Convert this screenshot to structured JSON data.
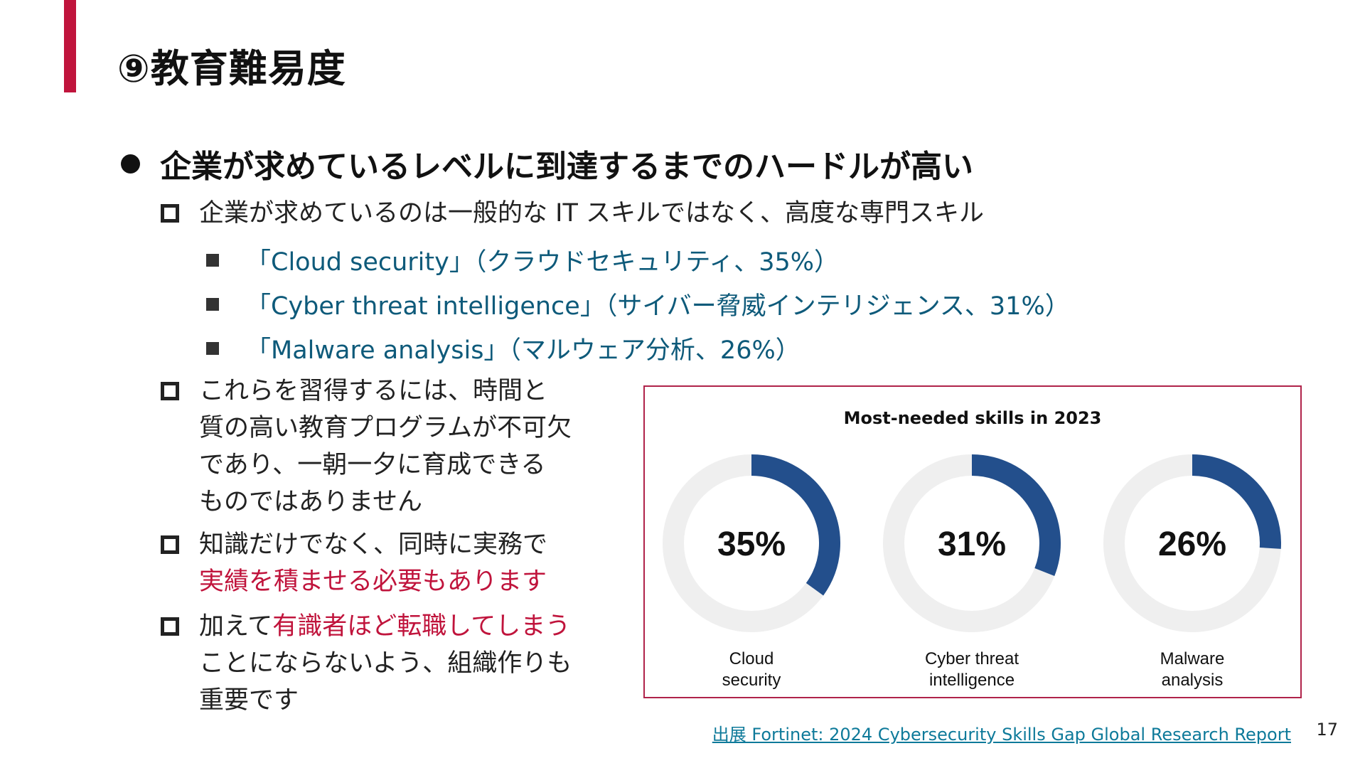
{
  "slide": {
    "title": "⑨教育難易度",
    "main_bullet": "企業が求めているレベルに到達するまでのハードルが高い",
    "point1": "企業が求めているのは一般的な IT スキルではなく、高度な専門スキル",
    "sub_items": [
      "「Cloud security」（クラウドセキュリティ、35%）",
      "「Cyber threat intelligence」（サイバー脅威インテリジェンス、31%）",
      "「Malware analysis」（マルウェア分析、26%）"
    ],
    "point2_lines": [
      "これらを習得するには、時間と",
      "質の高い教育プログラムが不可欠",
      "であり、一朝一夕に育成できる",
      "ものではありません"
    ],
    "point3_line1": "知識だけでなく、同時に実務で",
    "point3_line2": "実績を積ませる必要もあります",
    "point4_prefix": "加えて",
    "point4_red": "有識者ほど転職してしまう",
    "point4_line2": "ことにならないよう、組織作りも",
    "point4_line3": "重要です",
    "source": "出展 Fortinet: 2024 Cybersecurity Skills Gap Global Research Report",
    "page_number": "17"
  },
  "colors": {
    "accent": "#c0143c",
    "link": "#0e5a7a",
    "donut_fill": "#234f8c",
    "donut_track": "#efefef"
  },
  "chart_data": {
    "type": "pie",
    "title": "Most-needed skills in 2023",
    "series": [
      {
        "label_lines": [
          "Cloud",
          "security"
        ],
        "value": 35,
        "display": "35%"
      },
      {
        "label_lines": [
          "Cyber threat",
          "intelligence"
        ],
        "value": 31,
        "display": "31%"
      },
      {
        "label_lines": [
          "Malware",
          "analysis"
        ],
        "value": 26,
        "display": "26%"
      }
    ]
  }
}
